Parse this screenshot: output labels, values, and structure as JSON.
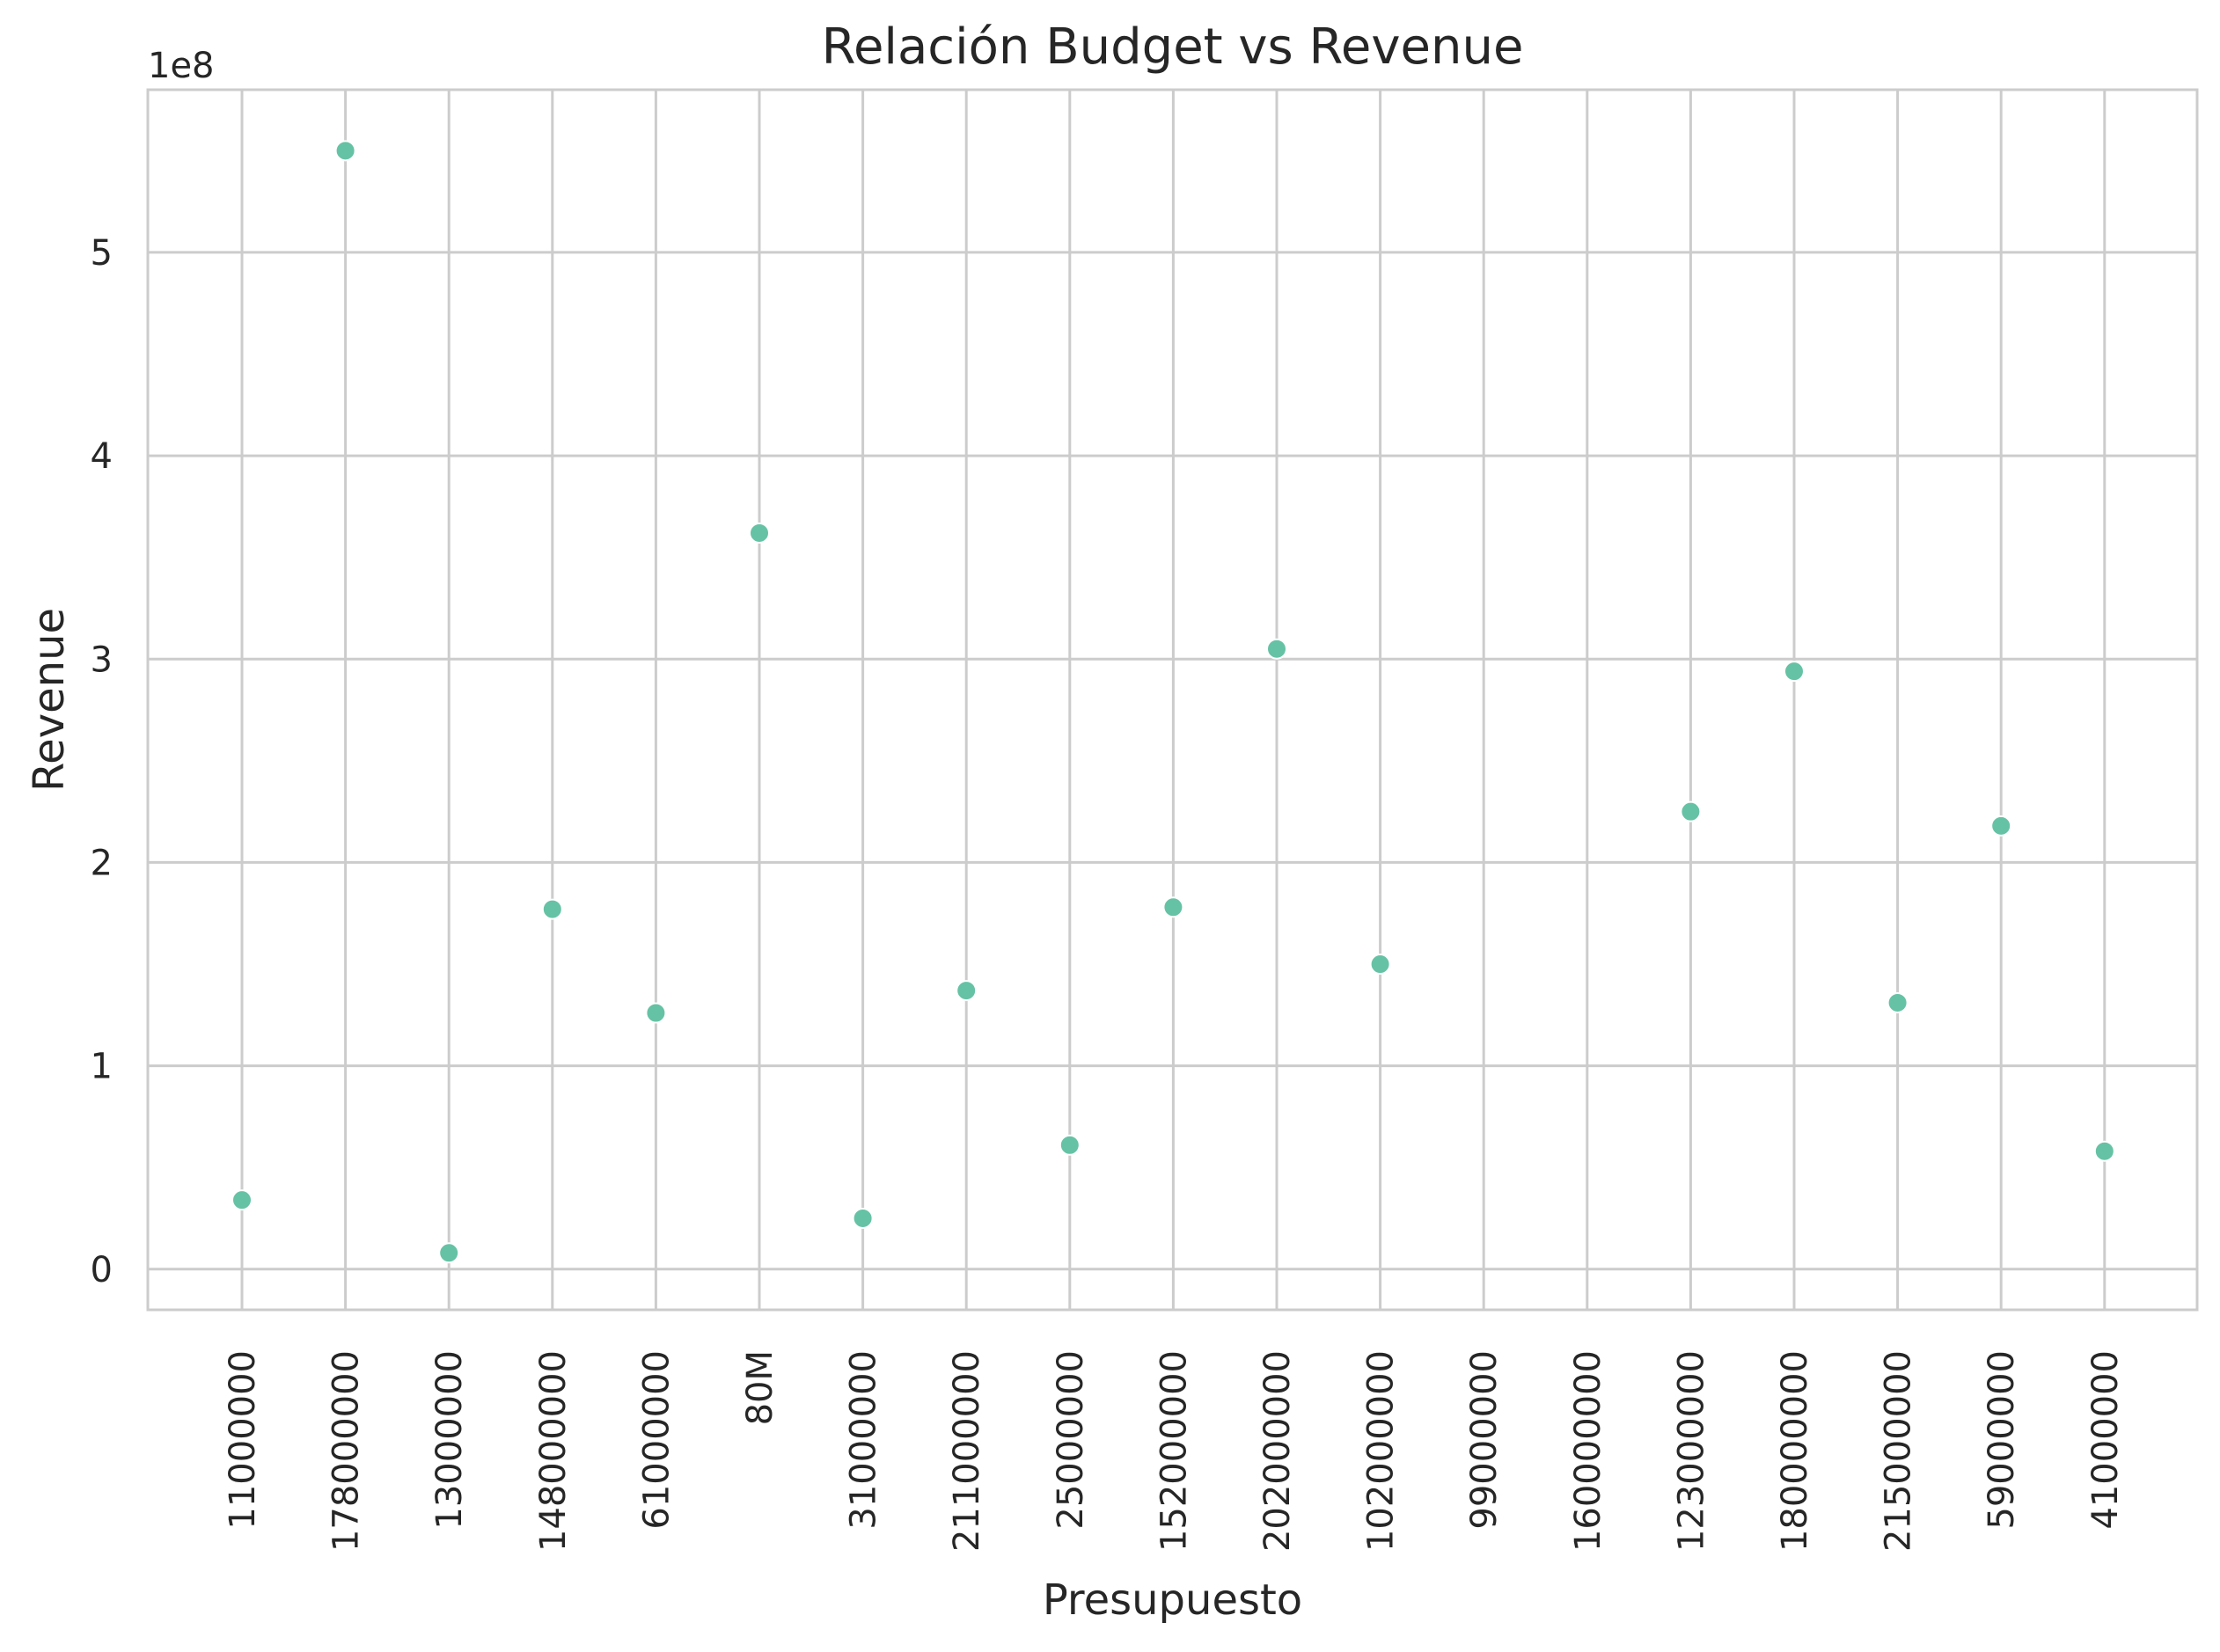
{
  "chart_data": {
    "type": "scatter",
    "title": "Relación Budget vs Revenue",
    "xlabel": "Presupuesto",
    "ylabel": "Revenue",
    "y_offset_label": "1e8",
    "y_scale": 100000000,
    "ylim": [
      -0.2,
      5.8
    ],
    "y_ticks": [
      0,
      1,
      2,
      3,
      4,
      5
    ],
    "grid": true,
    "x_axis_kind": "categorical",
    "tick_rotation": 90,
    "marker_color": "#66c2a5",
    "grid_color": "#cccccc",
    "categories": [
      "11000000",
      "178000000",
      "13000000",
      "148000000",
      "61000000",
      "80M",
      "31000000",
      "211000000",
      "25000000",
      "152000000",
      "202000000",
      "102000000",
      "99000000",
      "160000000",
      "123000000",
      "180000000",
      "215000000",
      "59000000",
      "41000000"
    ],
    "points": [
      {
        "x": "11000000",
        "y": 34000000
      },
      {
        "x": "178000000",
        "y": 550000000
      },
      {
        "x": "13000000",
        "y": 8000000
      },
      {
        "x": "148000000",
        "y": 177000000
      },
      {
        "x": "61000000",
        "y": 126000000
      },
      {
        "x": "80M",
        "y": 362000000
      },
      {
        "x": "31000000",
        "y": 25000000
      },
      {
        "x": "211000000",
        "y": 137000000
      },
      {
        "x": "25000000",
        "y": 61000000
      },
      {
        "x": "152000000",
        "y": 178000000
      },
      {
        "x": "202000000",
        "y": 305000000
      },
      {
        "x": "102000000",
        "y": 150000000
      },
      {
        "x": "123000000",
        "y": 225000000
      },
      {
        "x": "180000000",
        "y": 294000000
      },
      {
        "x": "215000000",
        "y": 131000000
      },
      {
        "x": "59000000",
        "y": 218000000
      },
      {
        "x": "41000000",
        "y": 58000000
      }
    ]
  }
}
